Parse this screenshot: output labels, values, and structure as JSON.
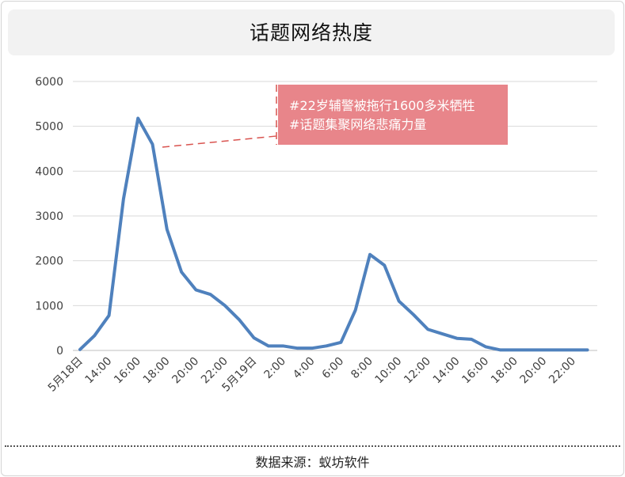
{
  "title": "话题网络热度",
  "source": "数据来源：蚁坊软件",
  "annotation": {
    "line1": "#22岁辅警被拖行1600多米牺牲",
    "line2": "#话题集聚网络悲痛力量",
    "bg_color": "#e8858a"
  },
  "colors": {
    "series": "#4f81bd",
    "grid": "#d9d9d9",
    "annotation_line": "#d9534f"
  },
  "chart_data": {
    "type": "line",
    "title": "话题网络热度",
    "x": [
      "5月18日",
      "",
      "14:00",
      "",
      "16:00",
      "",
      "18:00",
      "",
      "20:00",
      "",
      "22:00",
      "",
      "5月19日",
      "",
      "2:00",
      "",
      "4:00",
      "",
      "6:00",
      "",
      "8:00",
      "",
      "10:00",
      "",
      "12:00",
      "",
      "14:00",
      "",
      "16:00",
      "",
      "18:00",
      "",
      "20:00",
      "",
      "22:00",
      ""
    ],
    "series": [
      {
        "values": [
          20,
          330,
          780,
          3380,
          5180,
          4600,
          2700,
          1750,
          1350,
          1250,
          1000,
          680,
          280,
          100,
          100,
          50,
          50,
          100,
          180,
          900,
          2140,
          1900,
          1100,
          800,
          470,
          370,
          270,
          250,
          80,
          10,
          10,
          10,
          10,
          10,
          10,
          10
        ]
      }
    ],
    "ylim": [
      0,
      6000
    ],
    "yticks": [
      0,
      1000,
      2000,
      3000,
      4000,
      5000,
      6000
    ],
    "grid": true,
    "legend": "none"
  }
}
